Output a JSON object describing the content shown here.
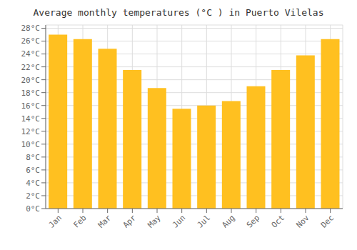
{
  "chart_data": {
    "type": "bar",
    "title": "Average monthly temperatures (°C ) in Puerto Vilelas",
    "categories": [
      "Jan",
      "Feb",
      "Mar",
      "Apr",
      "May",
      "Jun",
      "Jul",
      "Aug",
      "Sep",
      "Oct",
      "Nov",
      "Dec"
    ],
    "values": [
      27.0,
      26.3,
      24.8,
      21.5,
      18.7,
      15.5,
      16.0,
      16.7,
      19.0,
      21.5,
      23.8,
      26.3
    ],
    "color": "#FFC020",
    "ylim": [
      0,
      28.5
    ],
    "yticks": [
      {
        "value": 0,
        "label": "0°C"
      },
      {
        "value": 2,
        "label": "2°C"
      },
      {
        "value": 4,
        "label": "4°C"
      },
      {
        "value": 6,
        "label": "6°C"
      },
      {
        "value": 8,
        "label": "8°C"
      },
      {
        "value": 10,
        "label": "10°C"
      },
      {
        "value": 12,
        "label": "12°C"
      },
      {
        "value": 14,
        "label": "14°C"
      },
      {
        "value": 16,
        "label": "16°C"
      },
      {
        "value": 18,
        "label": "18°C"
      },
      {
        "value": 20,
        "label": "20°C"
      },
      {
        "value": 22,
        "label": "22°C"
      },
      {
        "value": 24,
        "label": "24°C"
      },
      {
        "value": 26,
        "label": "26°C"
      },
      {
        "value": 28,
        "label": "28°C"
      }
    ],
    "grid": true
  }
}
